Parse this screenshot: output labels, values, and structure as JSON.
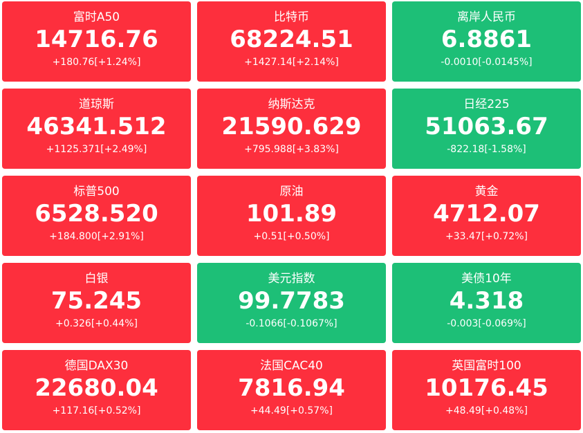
{
  "tiles": [
    {
      "name": "富时A50",
      "price": "14716.76",
      "change": "+180.76[+1.24%]",
      "color": "#fd2f3d"
    },
    {
      "name": "比特币",
      "price": "68224.51",
      "change": "+1427.14[+2.14%]",
      "color": "#fd2f3d"
    },
    {
      "name": "离岸人民币",
      "price": "6.8861",
      "change": "-0.0010[-0.0145%]",
      "color": "#1dbf77"
    },
    {
      "name": "道琼斯",
      "price": "46341.512",
      "change": "+1125.371[+2.49%]",
      "color": "#fd2f3d"
    },
    {
      "name": "纳斯达克",
      "price": "21590.629",
      "change": "+795.988[+3.83%]",
      "color": "#fd2f3d"
    },
    {
      "name": "日经225",
      "price": "51063.67",
      "change": "-822.18[-1.58%]",
      "color": "#1dbf77"
    },
    {
      "name": "标普500",
      "price": "6528.520",
      "change": "+184.800[+2.91%]",
      "color": "#fd2f3d"
    },
    {
      "name": "原油",
      "price": "101.89",
      "change": "+0.51[+0.50%]",
      "color": "#fd2f3d"
    },
    {
      "name": "黄金",
      "price": "4712.07",
      "change": "+33.47[+0.72%]",
      "color": "#fd2f3d"
    },
    {
      "name": "白银",
      "price": "75.245",
      "change": "+0.326[+0.44%]",
      "color": "#fd2f3d"
    },
    {
      "name": "美元指数",
      "price": "99.7783",
      "change": "-0.1066[-0.1067%]",
      "color": "#1dbf77"
    },
    {
      "name": "美债10年",
      "price": "4.318",
      "change": "-0.003[-0.069%]",
      "color": "#1dbf77"
    },
    {
      "name": "德国DAX30",
      "price": "22680.04",
      "change": "+117.16[+0.52%]",
      "color": "#fd2f3d"
    },
    {
      "name": "法国CAC40",
      "price": "7816.94",
      "change": "+44.49[+0.57%]",
      "color": "#fd2f3d"
    },
    {
      "name": "英国富时100",
      "price": "10176.45",
      "change": "+48.49[+0.48%]",
      "color": "#fd2f3d"
    }
  ]
}
